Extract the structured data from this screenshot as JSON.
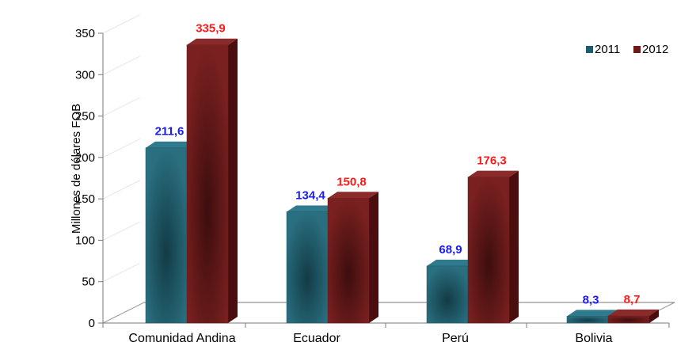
{
  "chart_data": {
    "type": "bar",
    "categories": [
      "Comunidad Andina",
      "Ecuador",
      "Perú",
      "Bolivia"
    ],
    "series": [
      {
        "name": "2011",
        "values": [
          211.6,
          134.4,
          68.9,
          8.3
        ],
        "labels": [
          "211,6",
          "134,4",
          "68,9",
          "8,3"
        ],
        "color": "#1f5c6b",
        "label_color": "#1a1aff"
      },
      {
        "name": "2012",
        "values": [
          335.9,
          150.8,
          176.3,
          8.7
        ],
        "labels": [
          "335,9",
          "150,8",
          "176,3",
          "8,7"
        ],
        "color": "#6e1a1a",
        "label_color": "#ff1a1a"
      }
    ],
    "ylabel": "Millones de dólares  FOB",
    "ylim": [
      0,
      350
    ],
    "yticks": [
      "0",
      "50",
      "100",
      "150",
      "200",
      "250",
      "300",
      "350"
    ],
    "legend_position": "top-right",
    "grid": true
  }
}
